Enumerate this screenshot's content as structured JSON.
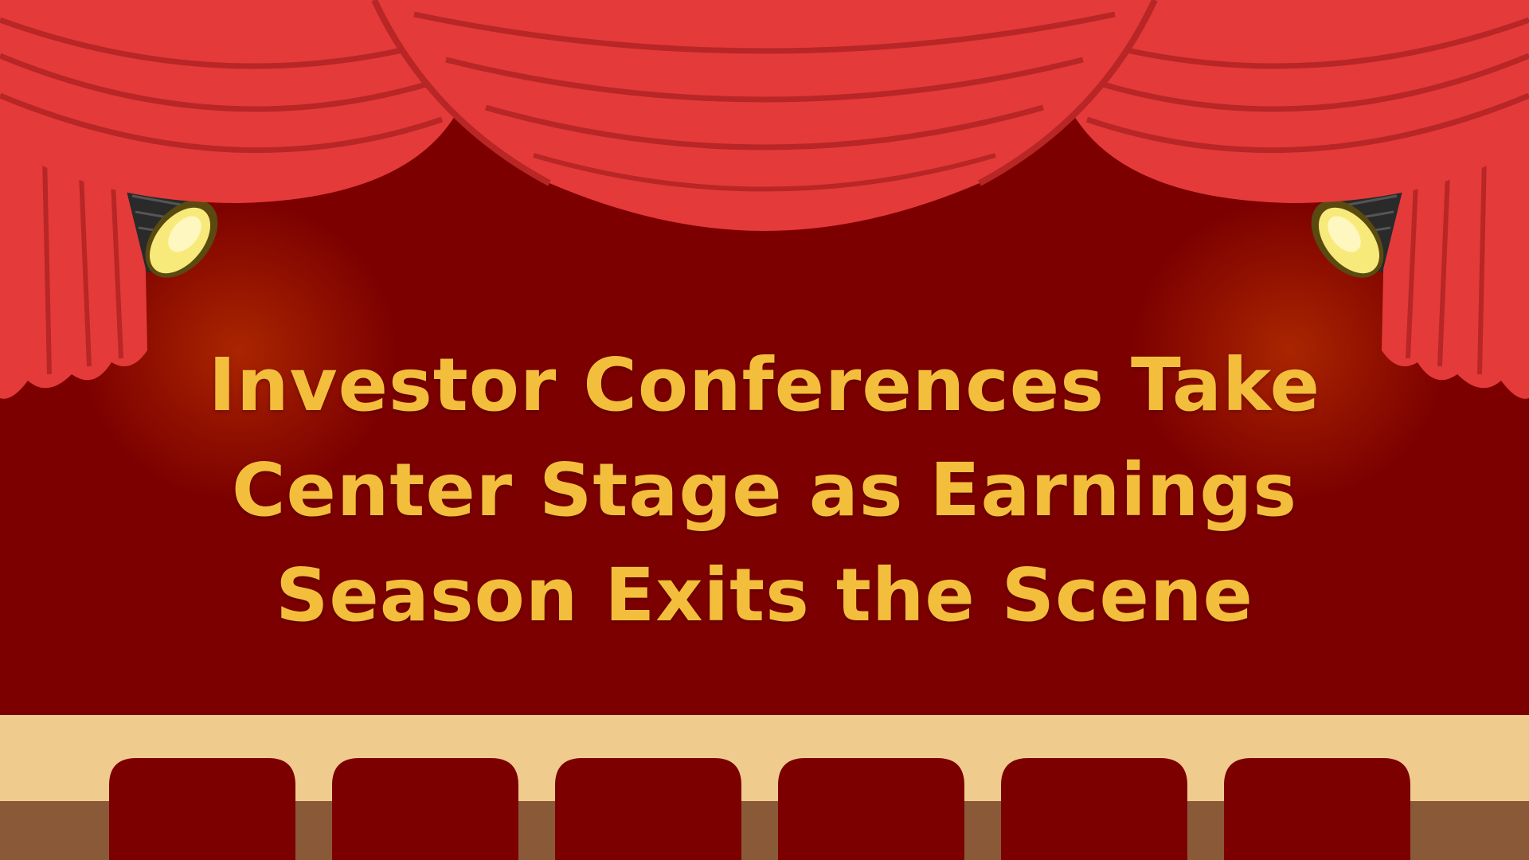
{
  "headline": {
    "line1": "Investor Conferences Take",
    "line2": "Center Stage as Earnings",
    "line3": "Season Exits the Scene"
  },
  "colors": {
    "stage_backdrop": "#7c0000",
    "curtain_red": "#e53a3a",
    "curtain_fold": "#b82626",
    "title_gold": "#f3be3c",
    "stage_floor": "#f0cb8e",
    "stage_base": "#8a5a38",
    "seat": "#7c0000"
  },
  "icons": [
    "left-spotlight-icon",
    "right-spotlight-icon"
  ],
  "seats": {
    "count": 6
  }
}
